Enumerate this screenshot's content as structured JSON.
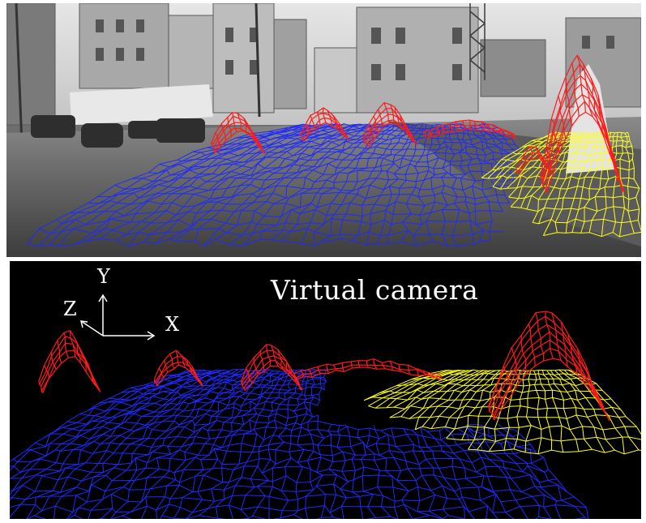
{
  "overlay_label": "Virtual camera",
  "axes": {
    "x": "X",
    "y": "Y",
    "z": "Z"
  },
  "colors": {
    "road": "#1f2bff",
    "obstacle": "#ff1a1a",
    "sidewalk": "#ffff1a",
    "background": "#000000"
  }
}
